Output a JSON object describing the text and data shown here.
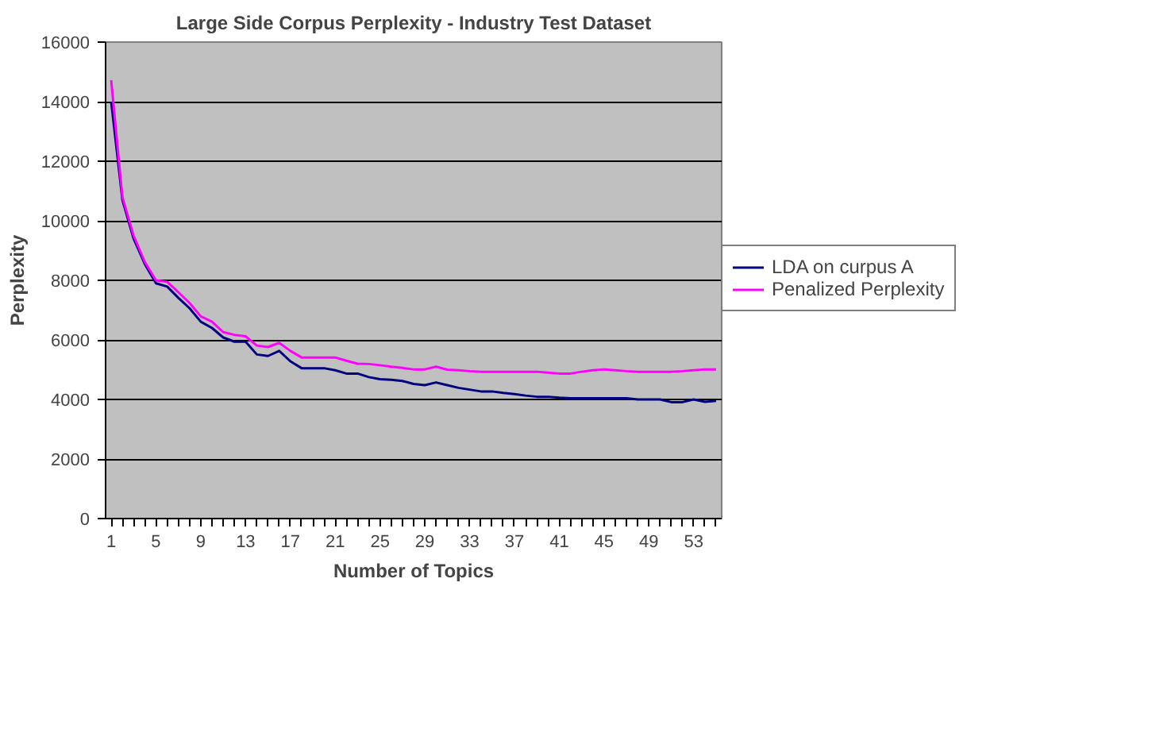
{
  "chart_data": {
    "type": "line",
    "title": "Large Side Corpus Perplexity - Industry Test Dataset",
    "xlabel": "Number of Topics",
    "ylabel": "Perplexity",
    "categories": [
      "1",
      null,
      null,
      null,
      "5",
      null,
      null,
      null,
      "9",
      null,
      null,
      null,
      "13",
      null,
      null,
      null,
      "17",
      null,
      null,
      null,
      "21",
      null,
      null,
      null,
      "25",
      null,
      null,
      null,
      "29",
      null,
      null,
      null,
      "33",
      null,
      null,
      null,
      "37",
      null,
      null,
      null,
      "41",
      null,
      null,
      null,
      "45",
      null,
      null,
      null,
      "49",
      null,
      null,
      null,
      "53",
      null,
      null
    ],
    "series": [
      {
        "name": "LDA on curpus A",
        "color": "#000080",
        "values": [
          14000,
          10700,
          9400,
          8550,
          7900,
          7790,
          7410,
          7060,
          6610,
          6400,
          6080,
          5940,
          5940,
          5510,
          5460,
          5630,
          5280,
          5050,
          5050,
          5050,
          4980,
          4870,
          4870,
          4750,
          4680,
          4660,
          4620,
          4520,
          4480,
          4570,
          4480,
          4390,
          4330,
          4270,
          4270,
          4220,
          4180,
          4130,
          4090,
          4090,
          4060,
          4040,
          4040,
          4040,
          4040,
          4040,
          4040,
          4000,
          4000,
          4000,
          3910,
          3910,
          4000,
          3920,
          3950
        ]
      },
      {
        "name": "Penalized Perplexity",
        "color": "#ff00ff",
        "values": [
          14720,
          10800,
          9500,
          8620,
          8000,
          7950,
          7600,
          7240,
          6790,
          6610,
          6260,
          6170,
          6120,
          5810,
          5760,
          5900,
          5630,
          5410,
          5410,
          5410,
          5410,
          5300,
          5200,
          5190,
          5150,
          5100,
          5060,
          5010,
          5010,
          5100,
          5000,
          4980,
          4950,
          4930,
          4930,
          4930,
          4930,
          4930,
          4930,
          4900,
          4870,
          4870,
          4930,
          4980,
          5010,
          4980,
          4950,
          4930,
          4930,
          4930,
          4930,
          4950,
          4980,
          5010,
          5010
        ]
      }
    ],
    "ylim": [
      0,
      16000
    ],
    "yticks": [
      0,
      2000,
      4000,
      6000,
      8000,
      10000,
      12000,
      14000,
      16000
    ],
    "grid": "y",
    "legend": "right",
    "marker": "none",
    "line_style": "solid"
  }
}
